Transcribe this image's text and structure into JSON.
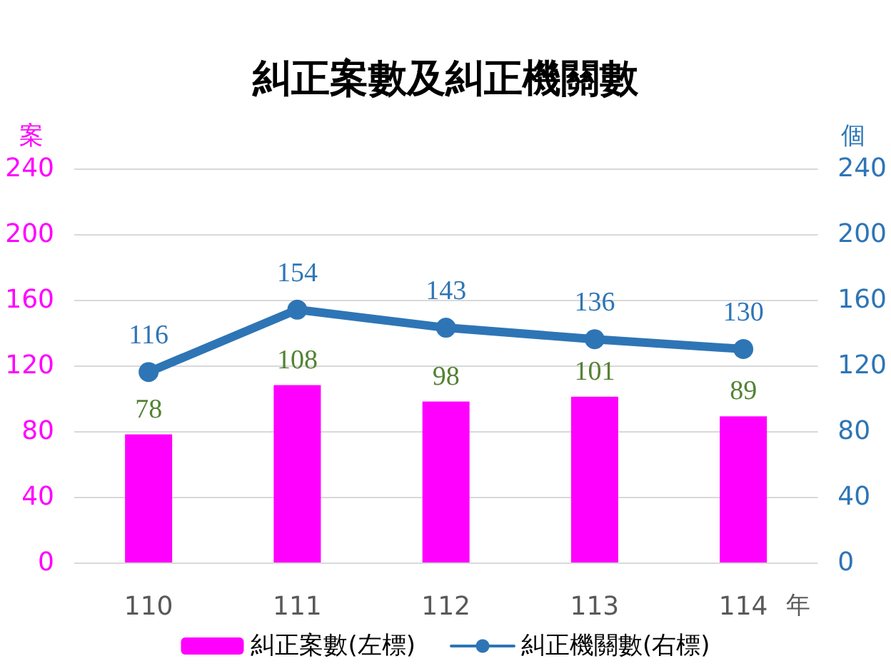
{
  "chart_data": {
    "type": "bar",
    "title": "糾正案數及糾正機關數",
    "xlabel": "年",
    "ylabel": "案",
    "y2label": "個",
    "categories": [
      "110",
      "111",
      "112",
      "113",
      "114"
    ],
    "series": [
      {
        "name": "糾正案數(左標)",
        "color": "#ff00ff",
        "values": [
          78,
          108,
          98,
          101,
          89
        ]
      },
      {
        "name": "糾正機關數(右標)",
        "type": "line",
        "axis": "y2",
        "color": "#2e75b6",
        "values": [
          116,
          154,
          143,
          136,
          130
        ]
      }
    ],
    "ylim": [
      0,
      240
    ],
    "yticks": [
      0,
      40,
      80,
      120,
      160,
      200,
      240
    ],
    "y2lim": [
      0,
      240
    ],
    "y2ticks": [
      0,
      40,
      80,
      120,
      160,
      200,
      240
    ],
    "grid": "y",
    "legend": "bottom",
    "data_labels": true,
    "marker": "circle"
  }
}
